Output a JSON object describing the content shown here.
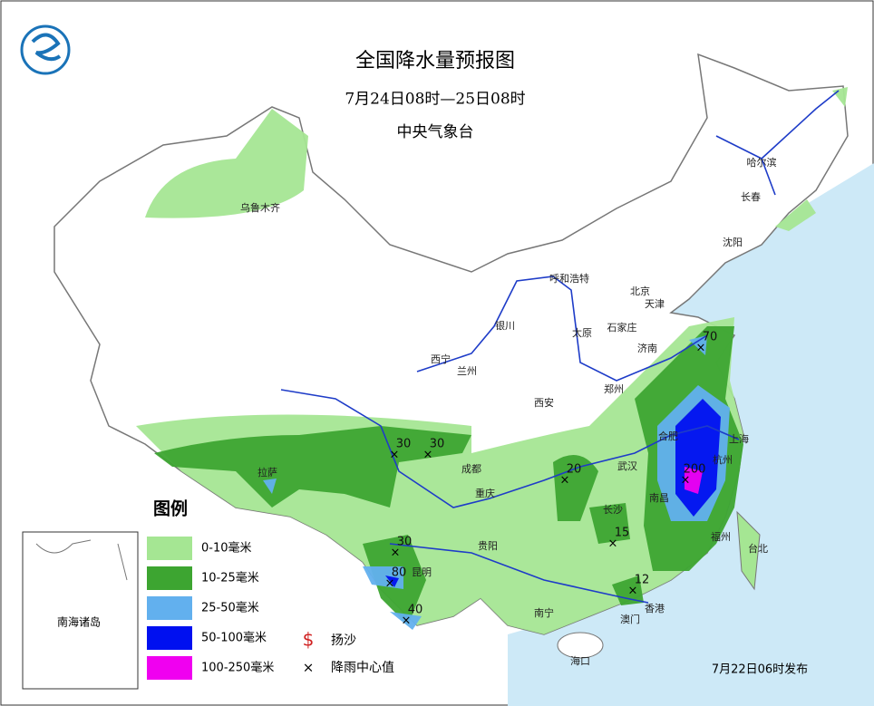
{
  "header": {
    "title": "全国降水量预报图",
    "period": "7月24日08时—25日08时",
    "issuer": "中央气象台"
  },
  "legend": {
    "title": "图例",
    "items": [
      {
        "label": "0-10毫米",
        "color": "#a5e693"
      },
      {
        "label": "10-25毫米",
        "color": "#3da531"
      },
      {
        "label": "25-50毫米",
        "color": "#62b0ee"
      },
      {
        "label": "50-100毫米",
        "color": "#0010f0"
      },
      {
        "label": "100-250毫米",
        "color": "#f000f0"
      }
    ],
    "symbols": [
      {
        "label": "扬沙"
      },
      {
        "label": "降雨中心值"
      }
    ]
  },
  "cities": [
    "乌鲁木齐",
    "哈尔滨",
    "长春",
    "沈阳",
    "呼和浩特",
    "北京",
    "天津",
    "石家庄",
    "太原",
    "济南",
    "银川",
    "西宁",
    "兰州",
    "郑州",
    "西安",
    "合肥",
    "上海",
    "杭州",
    "拉萨",
    "成都",
    "武汉",
    "重庆",
    "南昌",
    "长沙",
    "贵阳",
    "福州",
    "台北",
    "昆明",
    "南宁",
    "香港",
    "澳门",
    "海口"
  ],
  "rain_centers": [
    70,
    200,
    20,
    30,
    30,
    30,
    80,
    40,
    15,
    12
  ],
  "inset": "南海诸岛",
  "footer": "7月22日06时发布"
}
